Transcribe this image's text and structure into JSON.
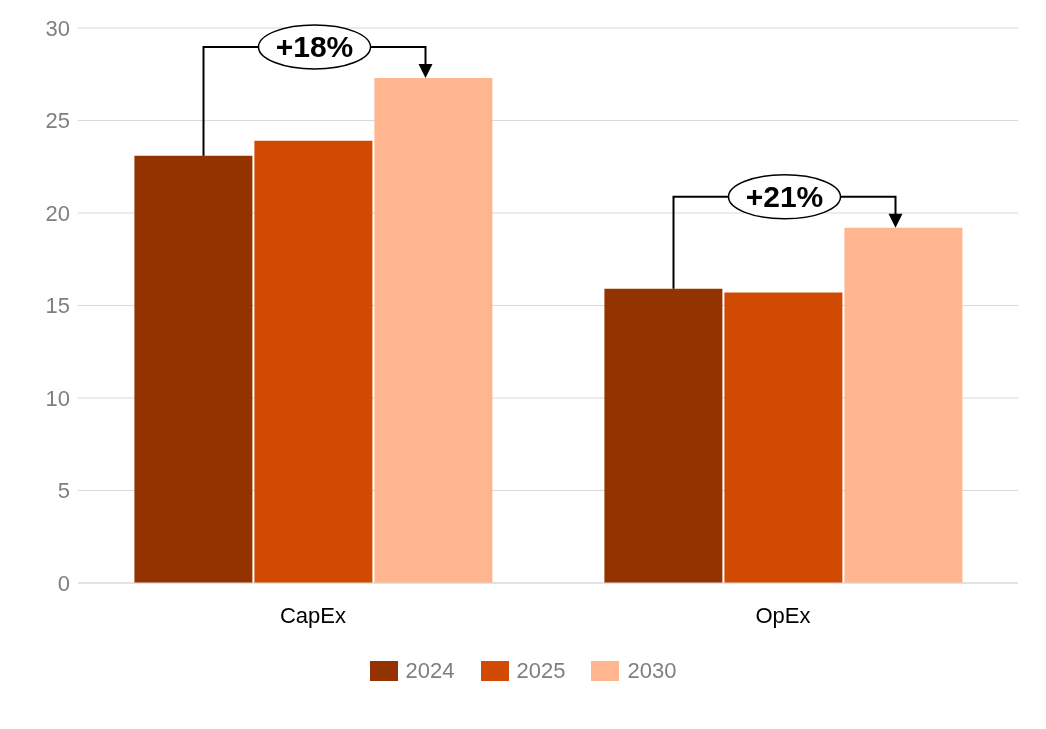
{
  "chart_data": {
    "type": "bar",
    "categories": [
      "CapEx",
      "OpEx"
    ],
    "series": [
      {
        "name": "2024",
        "color": "#933400",
        "values": [
          23.1,
          15.9
        ]
      },
      {
        "name": "2025",
        "color": "#d04a02",
        "values": [
          23.9,
          15.7
        ]
      },
      {
        "name": "2030",
        "color": "#ffb68f",
        "values": [
          27.3,
          19.2
        ]
      }
    ],
    "ylim": [
      0,
      30
    ],
    "yticks": [
      0,
      5,
      10,
      15,
      20,
      25,
      30
    ],
    "grid": "y",
    "legend": "bottom",
    "annotations": [
      "+18%",
      "+21%"
    ]
  }
}
